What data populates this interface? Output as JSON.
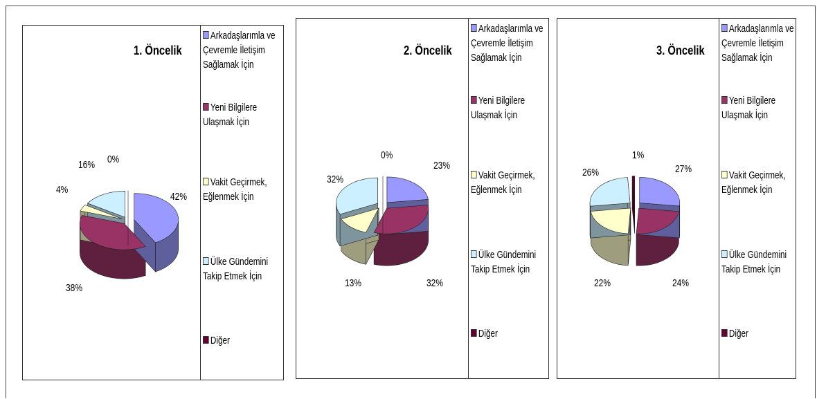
{
  "colors": {
    "arkadas": "#9999ff",
    "yeni": "#993366",
    "vakit": "#ffffcc",
    "ulke": "#ccf0ff",
    "diger": "#660033"
  },
  "legend": [
    {
      "key": "arkadas",
      "label": "Arkadaşlarımla ve Çevremle İletişim Sağlamak İçin"
    },
    {
      "key": "yeni",
      "label": "Yeni Bilgilere Ulaşmak İçin"
    },
    {
      "key": "vakit",
      "label": "Vakit Geçirmek, Eğlenmek İçin"
    },
    {
      "key": "ulke",
      "label": "Ülke Gündemini Takip Etmek İçin"
    },
    {
      "key": "diger",
      "label": "Diğer"
    }
  ],
  "chart_data": [
    {
      "type": "pie",
      "title": "1. Öncelik",
      "slices": [
        {
          "name": "Arkadaşlarımla ve Çevremle İletişim Sağlamak İçin",
          "value": 42,
          "label": "42%"
        },
        {
          "name": "Yeni Bilgilere Ulaşmak İçin",
          "value": 38,
          "label": "38%"
        },
        {
          "name": "Vakit Geçirmek, Eğlenmek İçin",
          "value": 4,
          "label": "4%"
        },
        {
          "name": "Ülke Gündemini Takip Etmek İçin",
          "value": 16,
          "label": "16%"
        },
        {
          "name": "Diğer",
          "value": 0,
          "label": "0%"
        }
      ]
    },
    {
      "type": "pie",
      "title": "2. Öncelik",
      "slices": [
        {
          "name": "Arkadaşlarımla ve Çevremle İletişim Sağlamak İçin",
          "value": 23,
          "label": "23%"
        },
        {
          "name": "Yeni Bilgilere Ulaşmak İçin",
          "value": 32,
          "label": "32%"
        },
        {
          "name": "Vakit Geçirmek, Eğlenmek İçin",
          "value": 13,
          "label": "13%"
        },
        {
          "name": "Ülke Gündemini Takip Etmek İçin",
          "value": 32,
          "label": "32%"
        },
        {
          "name": "Diğer",
          "value": 0,
          "label": "0%"
        }
      ]
    },
    {
      "type": "pie",
      "title": "3. Öncelik",
      "slices": [
        {
          "name": "Arkadaşlarımla ve Çevremle İletişim Sağlamak İçin",
          "value": 27,
          "label": "27%"
        },
        {
          "name": "Yeni Bilgilere Ulaşmak İçin",
          "value": 24,
          "label": "24%"
        },
        {
          "name": "Vakit Geçirmek, Eğlenmek İçin",
          "value": 22,
          "label": "22%"
        },
        {
          "name": "Ülke Gündemini Takip Etmek İçin",
          "value": 26,
          "label": "26%"
        },
        {
          "name": "Diğer",
          "value": 1,
          "label": "1%"
        }
      ]
    }
  ]
}
